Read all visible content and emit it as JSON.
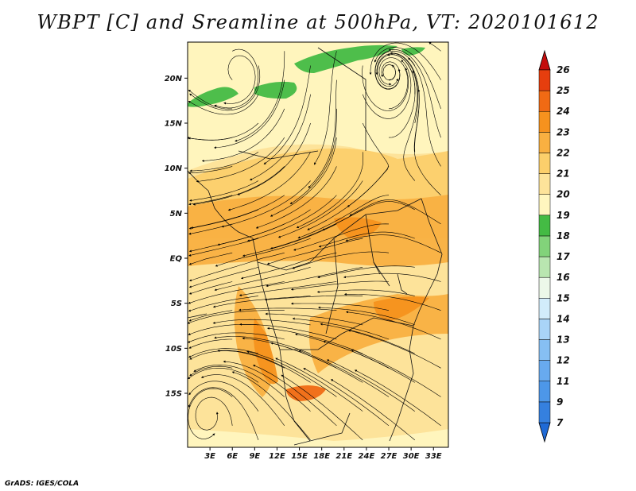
{
  "title": "WBPT [C] and Sreamline at 500hPa, VT: 2020101612",
  "credit": "GrADS: IGES/COLA",
  "chart_data": {
    "type": "heatmap",
    "variable": "Wet-bulb potential temperature (C) with streamlines",
    "level_hpa": 500,
    "valid_time": "2020101612",
    "lon_range": [
      0,
      35
    ],
    "lat_range": [
      -21,
      24
    ],
    "x_ticks": [
      "3E",
      "6E",
      "9E",
      "12E",
      "15E",
      "18E",
      "21E",
      "24E",
      "27E",
      "30E",
      "33E"
    ],
    "y_ticks": [
      "20N",
      "15N",
      "10N",
      "5N",
      "EQ",
      "5S",
      "10S",
      "15S"
    ],
    "colorbar": {
      "labels": [
        "7",
        "9",
        "11",
        "12",
        "13",
        "14",
        "15",
        "16",
        "17",
        "18",
        "19",
        "20",
        "21",
        "22",
        "23",
        "24",
        "25",
        "26"
      ],
      "colors": [
        "#1f6ad6",
        "#3580df",
        "#4d97e8",
        "#68aaef",
        "#86bff3",
        "#a9d4f7",
        "#d2ecfb",
        "#ecf8e9",
        "#b9e6b0",
        "#82d37a",
        "#44bb44",
        "#fff6bf",
        "#fde39a",
        "#fccf6b",
        "#f9b041",
        "#f6921e",
        "#f06a14",
        "#e63e0e",
        "#c40d0d"
      ],
      "extends": "both"
    },
    "regions": [
      {
        "name": "north-green-band",
        "wbpt_range": [
          16,
          18
        ],
        "lat": [
          19,
          24
        ],
        "lon": [
          0,
          20
        ]
      },
      {
        "name": "northern-plateau",
        "wbpt_range": [
          19,
          20
        ],
        "lat": [
          12,
          24
        ],
        "lon": [
          0,
          35
        ]
      },
      {
        "name": "central-orange-belt",
        "wbpt_range": [
          21,
          22
        ],
        "lat": [
          -5,
          12
        ],
        "lon": [
          0,
          35
        ]
      },
      {
        "name": "southern-arc",
        "wbpt_range": [
          22,
          23
        ],
        "lat": [
          -15,
          -5
        ],
        "lon": [
          6,
          28
        ]
      },
      {
        "name": "far-south",
        "wbpt_range": [
          19,
          20
        ],
        "lat": [
          -21,
          -15
        ],
        "lon": [
          0,
          35
        ]
      }
    ],
    "circulation": [
      {
        "name": "anticyclone-north-west",
        "lon": 7,
        "lat": 20
      },
      {
        "name": "cyclone-north-east",
        "lon": 27,
        "lat": 21
      },
      {
        "name": "convergence-south-west",
        "lon": 3,
        "lat": -17
      }
    ]
  }
}
